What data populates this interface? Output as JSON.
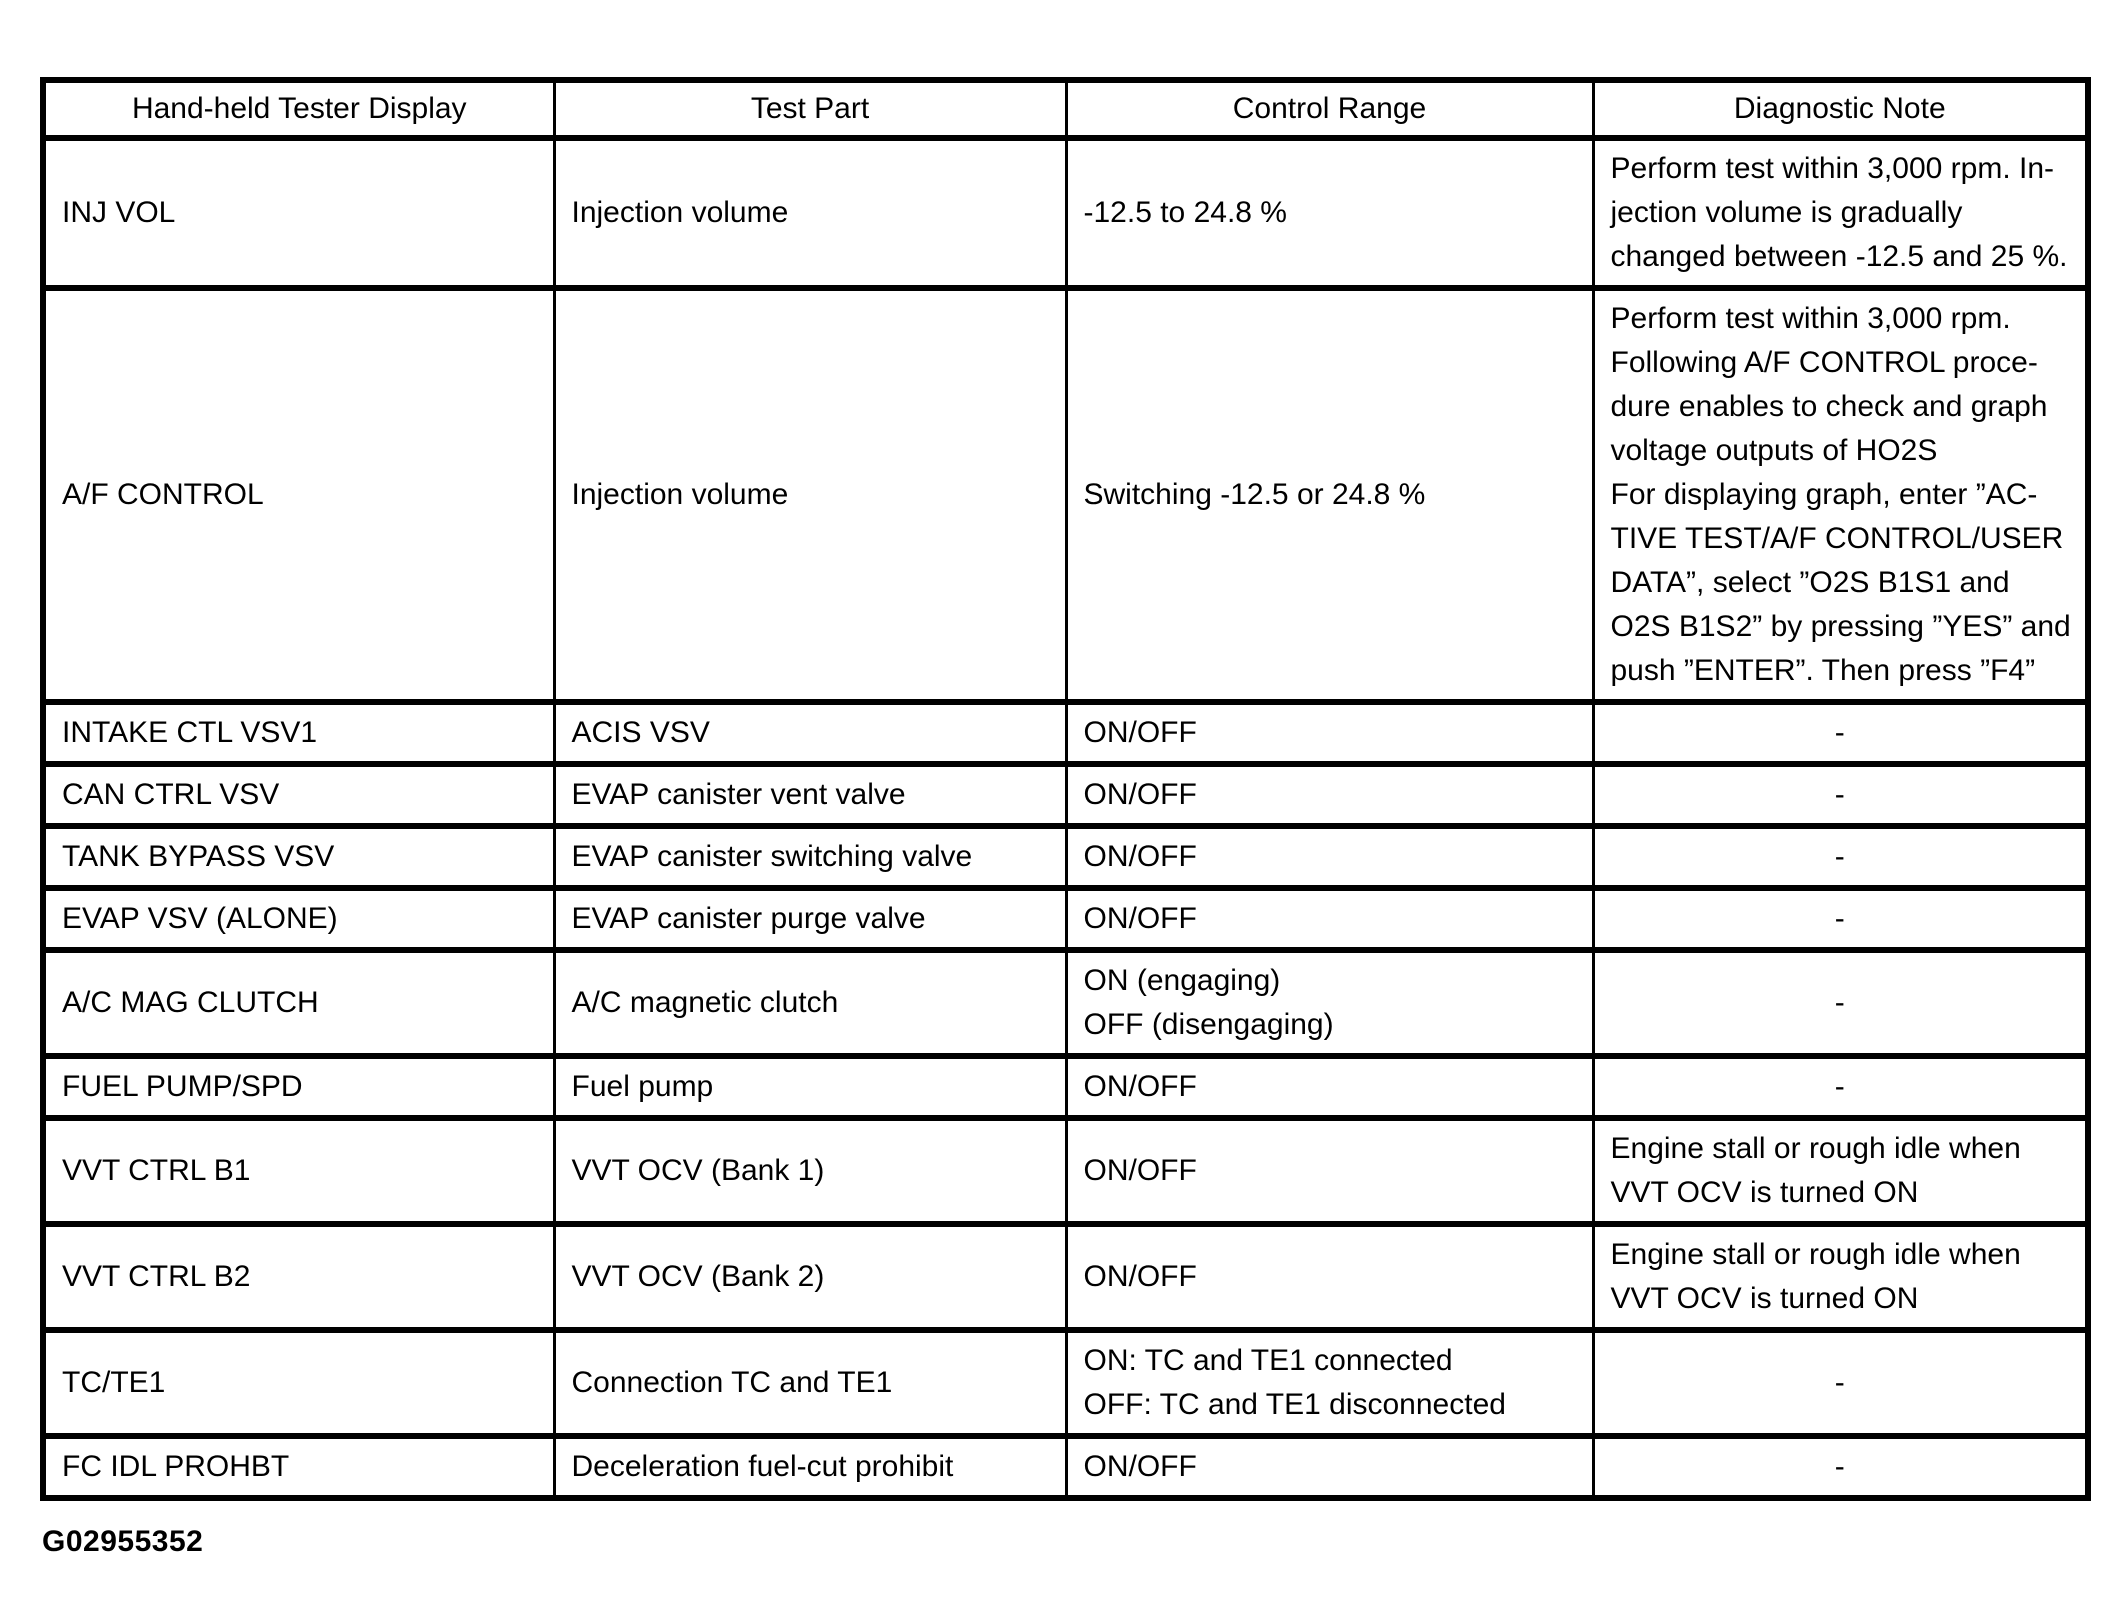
{
  "page": {
    "footer_code": "G02955352"
  },
  "table": {
    "headers": [
      "Hand-held Tester Display",
      "Test Part",
      "Control Range",
      "Diagnostic Note"
    ],
    "rows": [
      {
        "cells": [
          "INJ VOL",
          "Injection volume",
          "-12.5 to 24.8 %",
          "Perform test within 3,000 rpm. In-\njection volume is gradually\nchanged between -12.5 and 25 %."
        ]
      },
      {
        "cells": [
          "A/F CONTROL",
          "Injection volume",
          "Switching -12.5 or 24.8 %",
          "Perform test within 3,000 rpm.\nFollowing A/F CONTROL proce-\ndure enables to check and graph\nvoltage outputs of HO2S\nFor displaying graph, enter ”AC-\nTIVE TEST/A/F CONTROL/USER\nDATA”, select ”O2S B1S1 and\nO2S B1S2” by pressing ”YES” and\npush ”ENTER”. Then press ”F4”"
        ]
      },
      {
        "cells": [
          "INTAKE CTL VSV1",
          "ACIS VSV",
          "ON/OFF",
          "-"
        ]
      },
      {
        "cells": [
          "CAN CTRL VSV",
          "EVAP canister vent valve",
          "ON/OFF",
          "-"
        ]
      },
      {
        "cells": [
          "TANK BYPASS VSV",
          "EVAP canister switching valve",
          "ON/OFF",
          "-"
        ]
      },
      {
        "cells": [
          "EVAP VSV (ALONE)",
          "EVAP canister purge valve",
          "ON/OFF",
          "-"
        ]
      },
      {
        "cells": [
          "A/C MAG CLUTCH",
          "A/C magnetic clutch",
          "ON (engaging)\nOFF (disengaging)",
          "-"
        ]
      },
      {
        "cells": [
          "FUEL PUMP/SPD",
          "Fuel pump",
          "ON/OFF",
          "-"
        ]
      },
      {
        "cells": [
          "VVT CTRL B1",
          "VVT OCV (Bank 1)",
          "ON/OFF",
          "Engine stall or rough idle when\nVVT OCV is turned ON"
        ]
      },
      {
        "cells": [
          "VVT CTRL B2",
          "VVT OCV (Bank 2)",
          "ON/OFF",
          "Engine stall or rough idle when\nVVT OCV is turned ON"
        ]
      },
      {
        "cells": [
          "TC/TE1",
          "Connection TC and TE1",
          "ON: TC and TE1 connected\nOFF: TC and TE1 disconnected",
          "-"
        ]
      },
      {
        "cells": [
          "FC IDL PROHBT",
          "Deceleration fuel-cut prohibit",
          "ON/OFF",
          "-"
        ]
      }
    ]
  }
}
